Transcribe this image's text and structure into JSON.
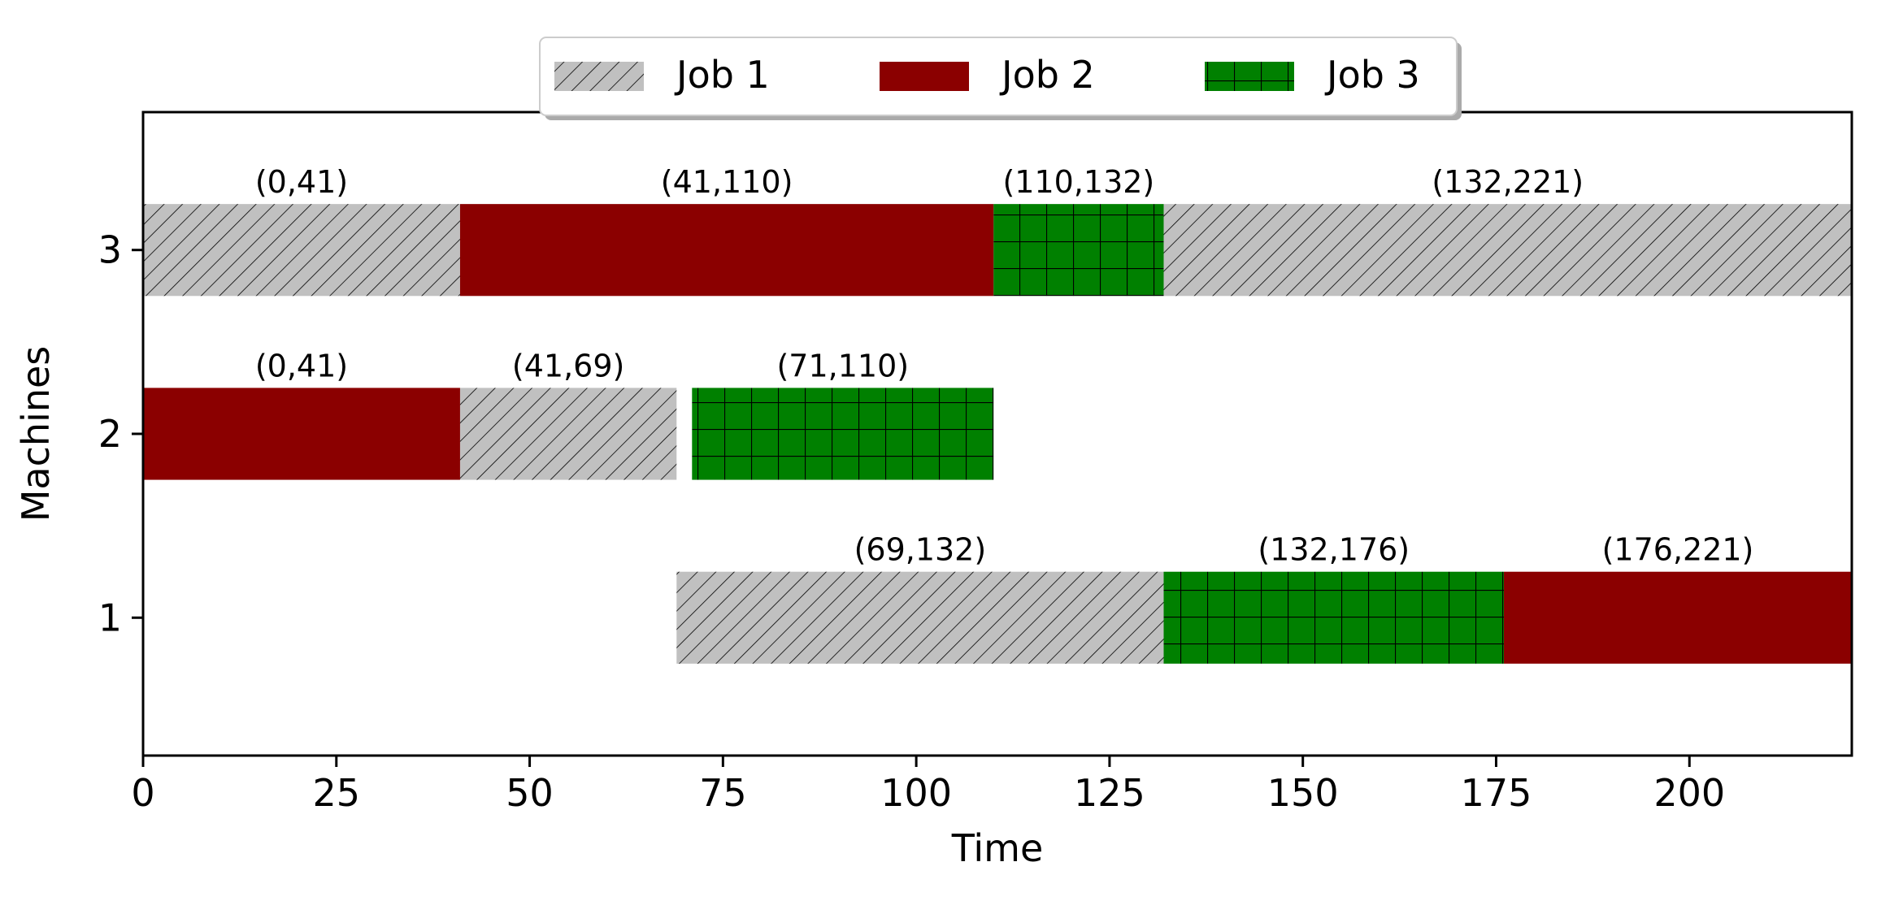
{
  "chart_data": {
    "type": "gantt",
    "xlabel": "Time",
    "ylabel": "Machines",
    "xlim": [
      0,
      221
    ],
    "ylim": [
      0.25,
      3.75
    ],
    "xticks": [
      0,
      25,
      50,
      75,
      100,
      125,
      150,
      175,
      200
    ],
    "yticks": [
      1,
      2,
      3
    ],
    "legend": {
      "placement": "top-center",
      "entries": [
        {
          "name": "Job 1",
          "job": 1
        },
        {
          "name": "Job 2",
          "job": 2
        },
        {
          "name": "Job 3",
          "job": 3
        }
      ]
    },
    "jobs": [
      {
        "job": 1,
        "color": "#c0c0c0",
        "hatch": "diagonal"
      },
      {
        "job": 2,
        "color": "#8b0000",
        "hatch": "none"
      },
      {
        "job": 3,
        "color": "#008000",
        "hatch": "grid"
      }
    ],
    "tasks": [
      {
        "machine": 3,
        "job": 1,
        "start": 0,
        "end": 41,
        "label": "(0,41)"
      },
      {
        "machine": 3,
        "job": 2,
        "start": 41,
        "end": 110,
        "label": "(41,110)"
      },
      {
        "machine": 3,
        "job": 3,
        "start": 110,
        "end": 132,
        "label": "(110,132)"
      },
      {
        "machine": 3,
        "job": 1,
        "start": 132,
        "end": 221,
        "label": "(132,221)"
      },
      {
        "machine": 2,
        "job": 2,
        "start": 0,
        "end": 41,
        "label": "(0,41)"
      },
      {
        "machine": 2,
        "job": 1,
        "start": 41,
        "end": 69,
        "label": "(41,69)"
      },
      {
        "machine": 2,
        "job": 3,
        "start": 71,
        "end": 110,
        "label": "(71,110)"
      },
      {
        "machine": 1,
        "job": 1,
        "start": 69,
        "end": 132,
        "label": "(69,132)"
      },
      {
        "machine": 1,
        "job": 3,
        "start": 132,
        "end": 176,
        "label": "(132,176)"
      },
      {
        "machine": 1,
        "job": 2,
        "start": 176,
        "end": 221,
        "label": "(176,221)"
      }
    ]
  }
}
